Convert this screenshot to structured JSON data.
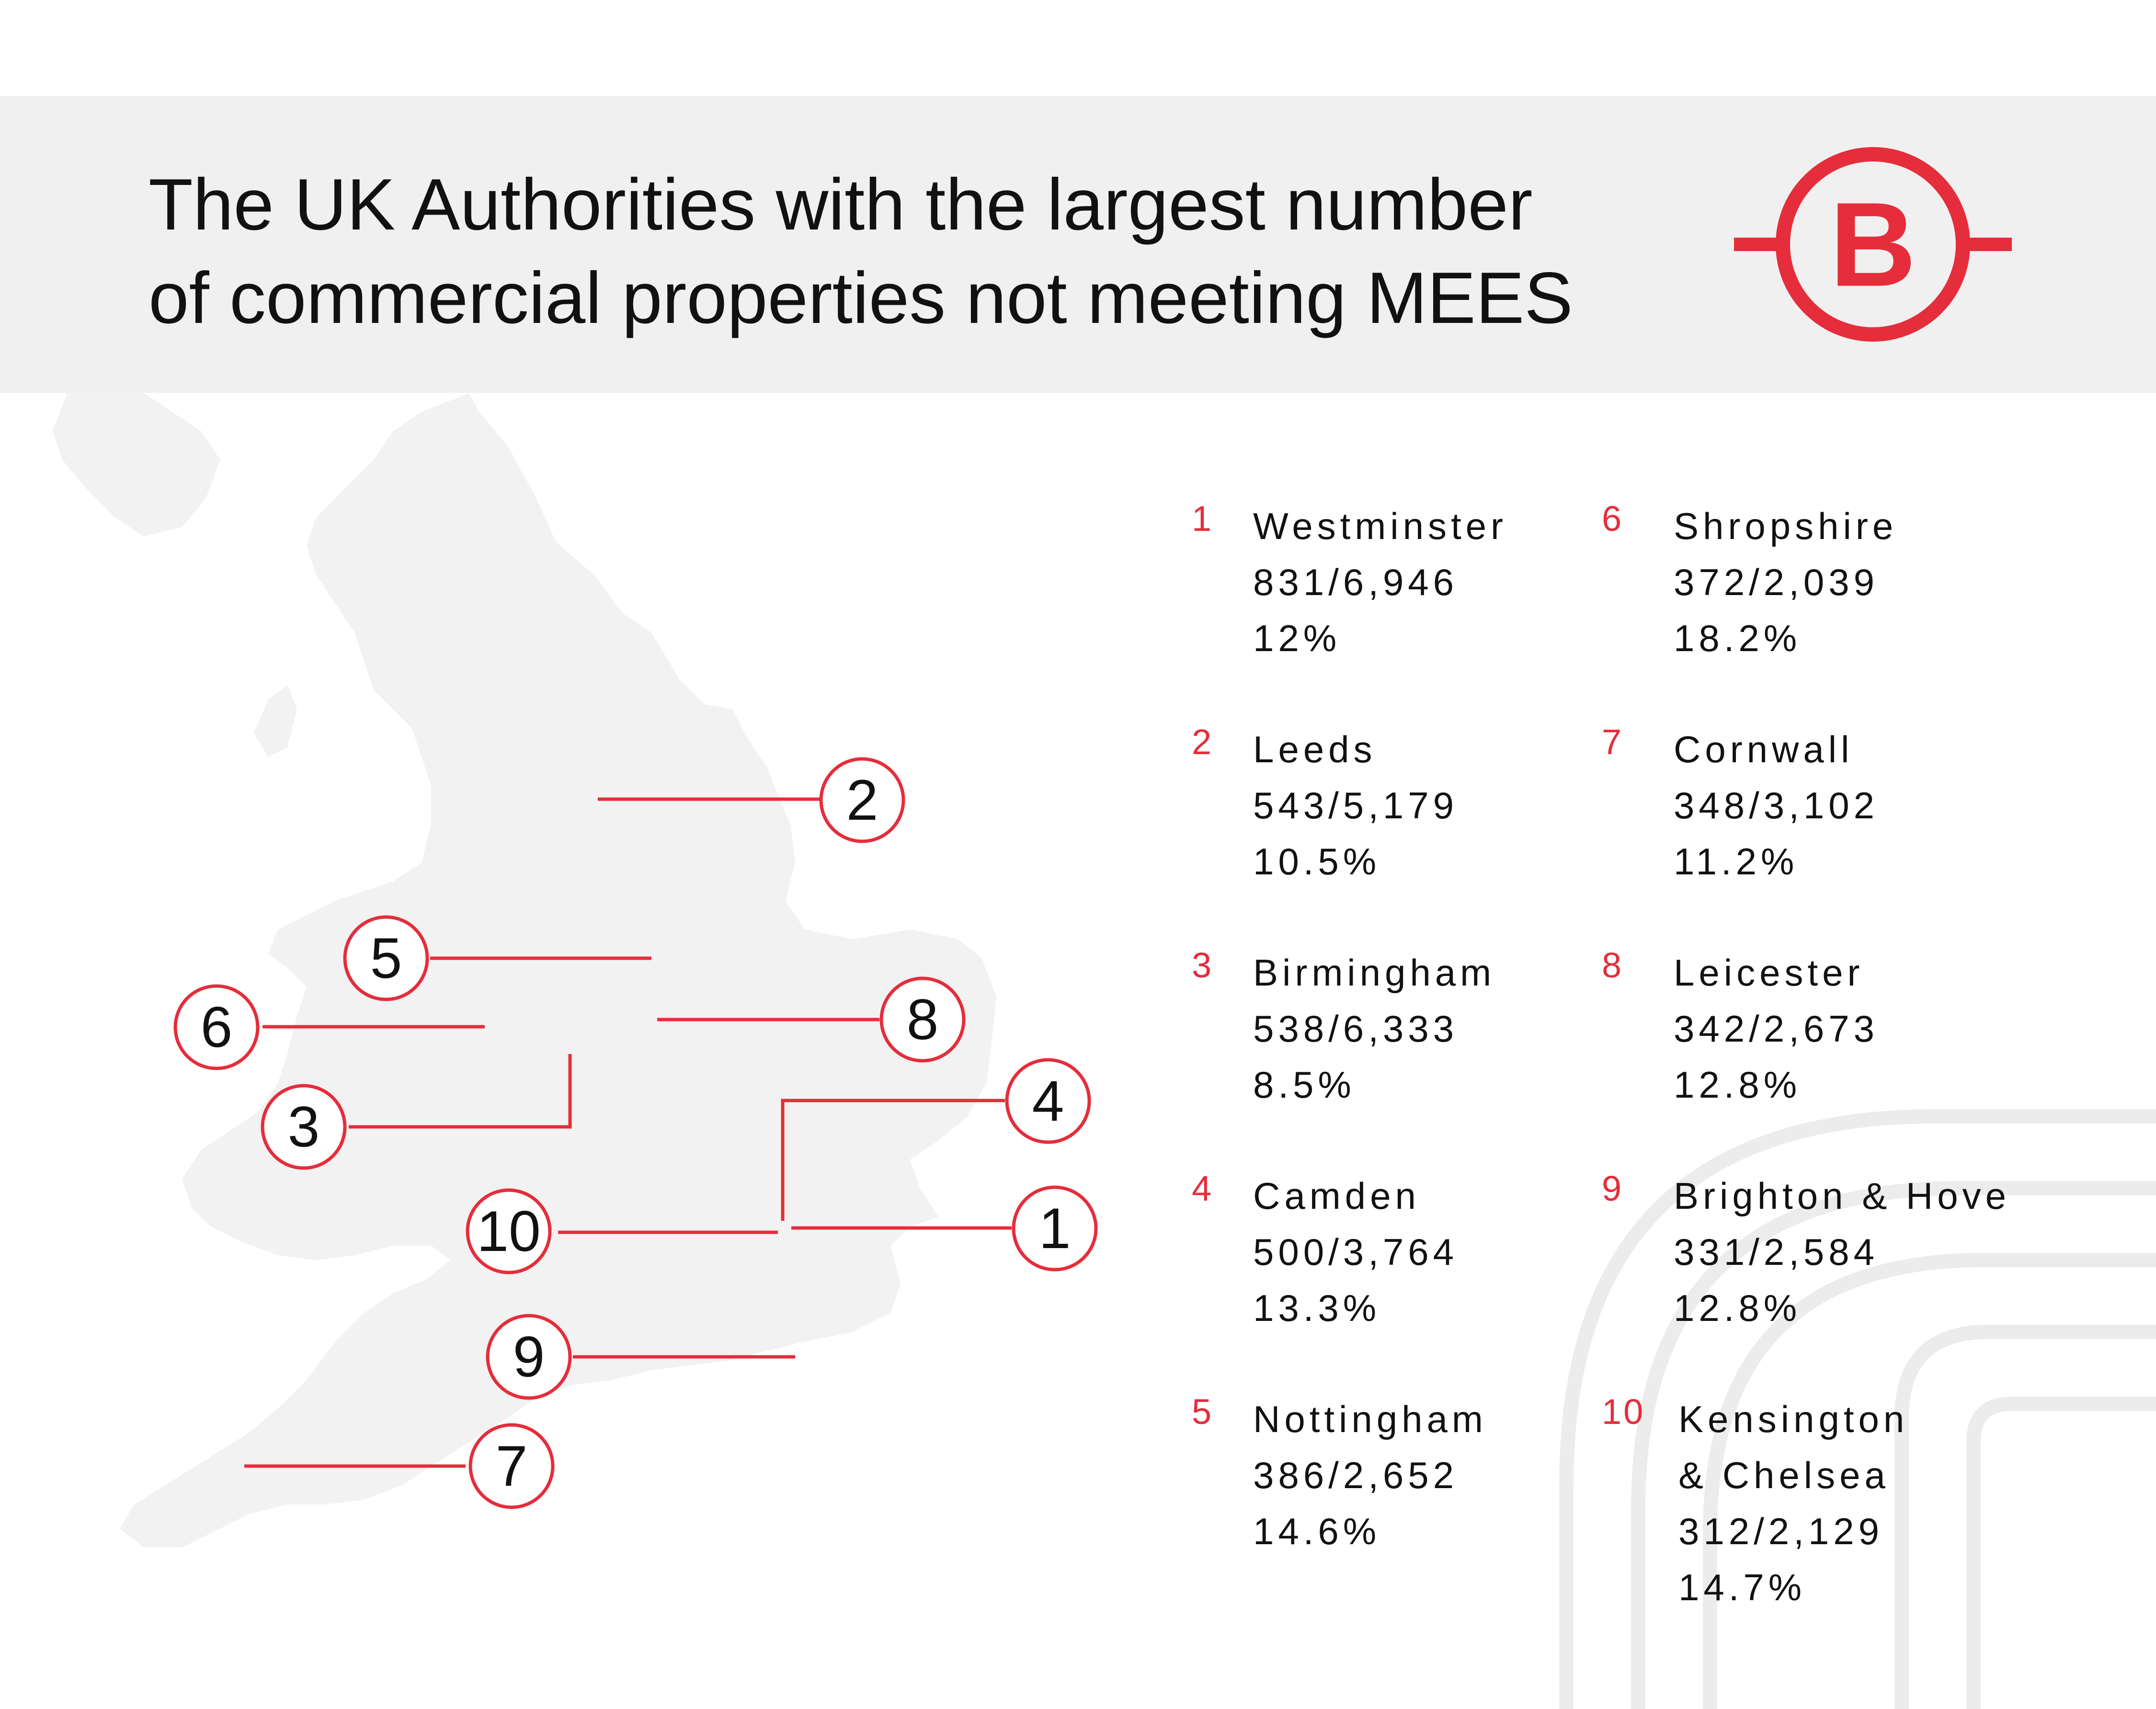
{
  "title": {
    "line1": "The UK Authorities with the largest number",
    "line2": "of commercial properties not meeting MEES"
  },
  "logo": {
    "letter": "B",
    "color": "#e52d3b"
  },
  "colors": {
    "accent": "#e52d3b",
    "banner": "#f0f0f0",
    "map": "#f2f2f2",
    "decor": "#ececec"
  },
  "map_markers": [
    "1",
    "2",
    "3",
    "4",
    "5",
    "6",
    "7",
    "8",
    "9",
    "10"
  ],
  "authorities": [
    {
      "rank": "1",
      "name_lines": [
        "Westminster"
      ],
      "ratio": "831/6,946",
      "percent": "12%"
    },
    {
      "rank": "2",
      "name_lines": [
        "Leeds"
      ],
      "ratio": "543/5,179",
      "percent": "10.5%"
    },
    {
      "rank": "3",
      "name_lines": [
        "Birmingham"
      ],
      "ratio": "538/6,333",
      "percent": "8.5%"
    },
    {
      "rank": "4",
      "name_lines": [
        "Camden"
      ],
      "ratio": "500/3,764",
      "percent": "13.3%"
    },
    {
      "rank": "5",
      "name_lines": [
        "Nottingham"
      ],
      "ratio": "386/2,652",
      "percent": "14.6%"
    },
    {
      "rank": "6",
      "name_lines": [
        "Shropshire"
      ],
      "ratio": "372/2,039",
      "percent": "18.2%"
    },
    {
      "rank": "7",
      "name_lines": [
        "Cornwall"
      ],
      "ratio": "348/3,102",
      "percent": "11.2%"
    },
    {
      "rank": "8",
      "name_lines": [
        "Leicester"
      ],
      "ratio": "342/2,673",
      "percent": "12.8%"
    },
    {
      "rank": "9",
      "name_lines": [
        "Brighton & Hove"
      ],
      "ratio": "331/2,584",
      "percent": "12.8%"
    },
    {
      "rank": "10",
      "name_lines": [
        "Kensington",
        "& Chelsea"
      ],
      "ratio": "312/2,129",
      "percent": "14.7%"
    }
  ]
}
